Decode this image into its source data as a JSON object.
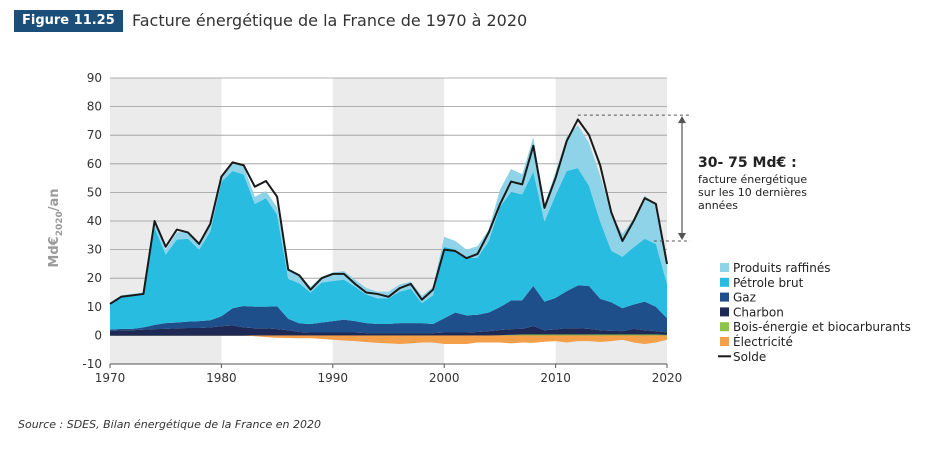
{
  "header": {
    "figure_label": "Figure 11.25",
    "title": "Facture énergétique de la France de 1970 à 2020"
  },
  "source": "Source : SDES, Bilan énergétique de la France en 2020",
  "chart_data": {
    "type": "area",
    "stacked": true,
    "xlim": [
      1970,
      2020
    ],
    "ylim": [
      -10,
      90
    ],
    "yticks": [
      -10,
      0,
      10,
      20,
      30,
      40,
      50,
      60,
      70,
      80,
      90
    ],
    "xticks": [
      1970,
      1980,
      1990,
      2000,
      2010,
      2020
    ],
    "ylabel": "Md€2020/an",
    "ylabel_main": "Md€",
    "ylabel_sub": "2020",
    "ylabel_tail": "/an",
    "shaded_decades": [
      [
        1970,
        1980
      ],
      [
        1990,
        2000
      ],
      [
        2010,
        2020
      ]
    ],
    "grid": true,
    "legend_position": "right",
    "years": [
      1970,
      1971,
      1972,
      1973,
      1974,
      1975,
      1976,
      1977,
      1978,
      1979,
      1980,
      1981,
      1982,
      1983,
      1984,
      1985,
      1986,
      1987,
      1988,
      1989,
      1990,
      1991,
      1992,
      1993,
      1994,
      1995,
      1996,
      1997,
      1998,
      1999,
      2000,
      2001,
      2002,
      2003,
      2004,
      2005,
      2006,
      2007,
      2008,
      2009,
      2010,
      2011,
      2012,
      2013,
      2014,
      2015,
      2016,
      2017,
      2018,
      2019,
      2020
    ],
    "series": [
      {
        "name": "Électricité",
        "color": "#f4a04a",
        "values": [
          0,
          0,
          0,
          0,
          0,
          0,
          0,
          0,
          0,
          0,
          0,
          0,
          0,
          -0.3,
          -0.6,
          -0.8,
          -0.9,
          -1,
          -1,
          -1.2,
          -1.5,
          -1.8,
          -2,
          -2.3,
          -2.6,
          -2.8,
          -3,
          -2.8,
          -2.5,
          -2.5,
          -3,
          -3,
          -3,
          -2.5,
          -2.5,
          -2.5,
          -2.8,
          -2.5,
          -2.6,
          -2.2,
          -2,
          -2.5,
          -2,
          -2,
          -2.3,
          -2,
          -1.5,
          -2.5,
          -3,
          -2.5,
          -1.5
        ]
      },
      {
        "name": "Bois-énergie et biocarburants",
        "color": "#8dc44a",
        "values": [
          0,
          0,
          0,
          0,
          0,
          0,
          0,
          0,
          0,
          0,
          0,
          0,
          0,
          0,
          0,
          0,
          0,
          0,
          0,
          0,
          0,
          0,
          0,
          0,
          0,
          0,
          0,
          0,
          0,
          0,
          0,
          0,
          0,
          0,
          0,
          0.1,
          0.2,
          0.3,
          0.3,
          0.3,
          0.3,
          0.3,
          0.3,
          0.3,
          0.3,
          0.3,
          0.3,
          0.3,
          0.3,
          0.3,
          0.2
        ]
      },
      {
        "name": "Charbon",
        "color": "#1e2a55",
        "values": [
          1.5,
          1.8,
          1.8,
          2,
          2.2,
          2.3,
          2.5,
          2.6,
          2.6,
          2.8,
          3.2,
          3.5,
          2.8,
          2.5,
          2.5,
          2.2,
          1.8,
          1.2,
          1,
          1,
          1,
          1,
          1,
          0.8,
          0.8,
          0.8,
          0.8,
          0.8,
          0.8,
          0.8,
          1,
          1,
          1,
          1.2,
          1.5,
          1.8,
          2,
          2,
          3,
          1.5,
          1.8,
          2.2,
          2.2,
          2,
          1.5,
          1.3,
          1.2,
          2,
          1.5,
          1.2,
          0.8
        ]
      },
      {
        "name": "Gaz",
        "color": "#1f4f8a",
        "values": [
          0.5,
          0.5,
          0.5,
          0.8,
          1.5,
          2,
          2,
          2.2,
          2.4,
          2.5,
          3.5,
          6,
          7.5,
          7.5,
          7.5,
          8,
          4,
          3,
          3,
          3.5,
          4,
          4.5,
          4,
          3.5,
          3.2,
          3.2,
          3.5,
          3.5,
          3.5,
          3.2,
          5,
          7,
          6,
          6,
          6.5,
          8,
          10,
          10,
          14,
          10,
          11,
          13,
          15,
          15,
          11,
          10,
          8,
          8.5,
          10,
          8.5,
          5
        ]
      },
      {
        "name": "Pétrole brut",
        "color": "#28bde0",
        "values": [
          9,
          11,
          11.5,
          11.5,
          34,
          24,
          29,
          29,
          25,
          31,
          47,
          48,
          46,
          36,
          38,
          32,
          14,
          14,
          11,
          14,
          14,
          14,
          12,
          10,
          9,
          9,
          11,
          12,
          7,
          10,
          25,
          22,
          20,
          20,
          25,
          35,
          38,
          37,
          40,
          28,
          36,
          42,
          41,
          35,
          27,
          18,
          18,
          20,
          22,
          22,
          12
        ]
      },
      {
        "name": "Produits raffinés",
        "color": "#8fd3e8",
        "values": [
          0.5,
          0.7,
          0.7,
          0.7,
          2.3,
          1.7,
          2.5,
          2.5,
          2,
          2.2,
          2.3,
          2.5,
          3,
          2.5,
          2.5,
          2.5,
          3,
          3,
          2,
          2,
          3,
          3,
          2.5,
          2.3,
          2.3,
          2.3,
          2.5,
          2.5,
          2.5,
          3,
          3.5,
          3,
          3,
          4,
          4,
          6,
          8,
          7,
          12,
          6,
          8,
          12,
          15,
          15,
          16,
          13,
          8,
          10,
          15,
          14,
          7
        ]
      }
    ],
    "solde": {
      "name": "Solde",
      "color": "#1a1a1a",
      "values": [
        11,
        13.5,
        14,
        14.5,
        40,
        31,
        37,
        36,
        32,
        39,
        55.5,
        60.5,
        59.5,
        52,
        54,
        48.5,
        23,
        21,
        16,
        20,
        21.5,
        21.5,
        18,
        15,
        14.5,
        13.5,
        16.5,
        18,
        12.5,
        16,
        30,
        29.5,
        27,
        28.5,
        36,
        45.8,
        53.8,
        52.8,
        66.3,
        44.6,
        55.1,
        68,
        75.5,
        70.1,
        59.5,
        43,
        33,
        40,
        48,
        46,
        25
      ]
    },
    "annotation": {
      "range_label": "30- 75 Md€ :",
      "line1": "facture énergétique",
      "line2": "sur les 10 dernières",
      "line3": "années",
      "from_year": 2012,
      "low": 33,
      "high": 77
    }
  }
}
